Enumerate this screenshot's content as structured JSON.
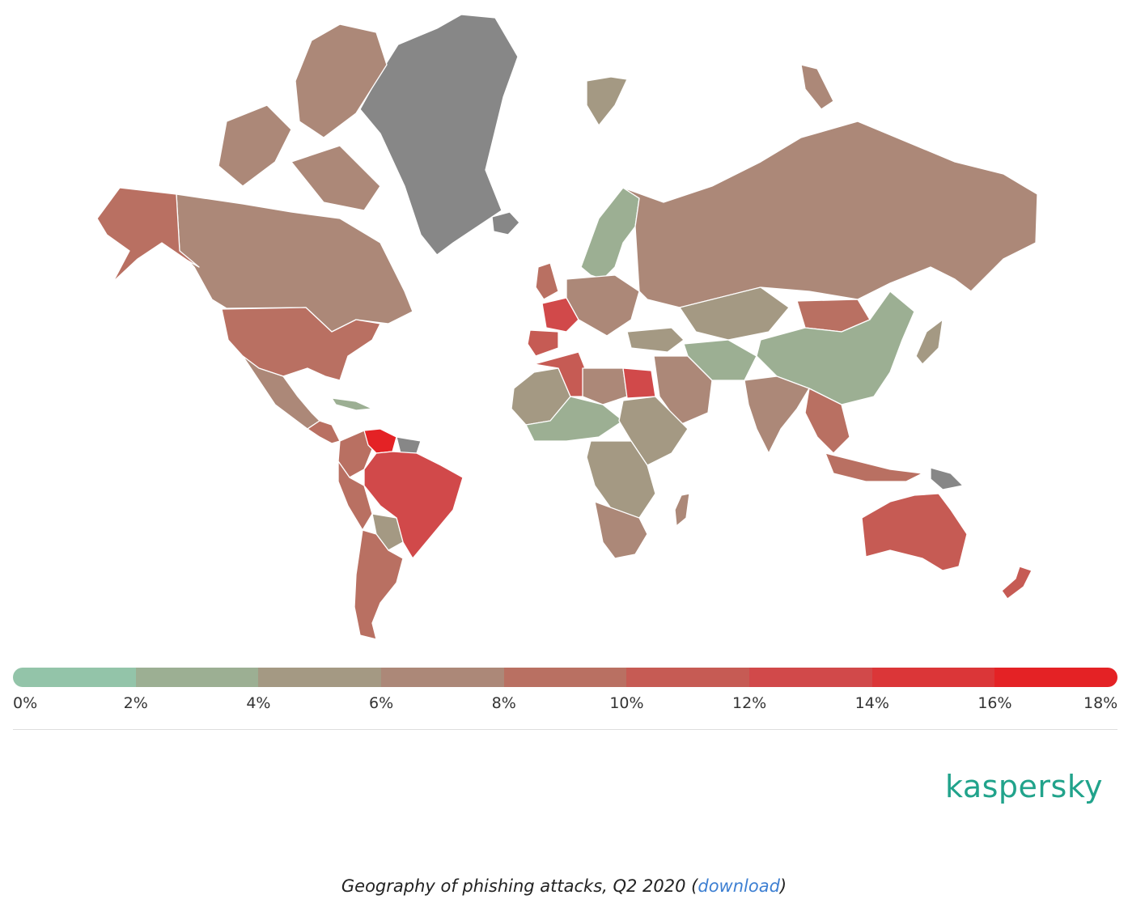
{
  "map": {
    "legend": {
      "ticks": [
        "0%",
        "2%",
        "4%",
        "6%",
        "8%",
        "10%",
        "12%",
        "14%",
        "16%",
        "18%"
      ],
      "colors": [
        "#93c4a9",
        "#9caf93",
        "#a49983",
        "#ac8878",
        "#b97062",
        "#c65b54",
        "#d1494a",
        "#db3638",
        "#e42225"
      ]
    },
    "no_data_color": "#878787",
    "regions": [
      {
        "name": "Greenland",
        "band": -1
      },
      {
        "name": "Canada",
        "band": 3
      },
      {
        "name": "Alaska",
        "band": 4
      },
      {
        "name": "United States",
        "band": 4
      },
      {
        "name": "Mexico",
        "band": 3
      },
      {
        "name": "Venezuela",
        "band": 8
      },
      {
        "name": "Brazil",
        "band": 6
      },
      {
        "name": "France",
        "band": 6
      },
      {
        "name": "Algeria",
        "band": 5
      },
      {
        "name": "Egypt",
        "band": 6
      },
      {
        "name": "China",
        "band": 1
      },
      {
        "name": "Russia",
        "band": 3
      },
      {
        "name": "Australia",
        "band": 5
      },
      {
        "name": "India",
        "band": 3
      },
      {
        "name": "Mongolia",
        "band": 4
      },
      {
        "name": "Nordics",
        "band": 1
      },
      {
        "name": "South Africa",
        "band": 4
      },
      {
        "name": "Papua New Guinea",
        "band": -1
      }
    ]
  },
  "branding": {
    "logo_text": "kaspersky",
    "logo_color": "#21a38b"
  },
  "caption": {
    "text": "Geography of phishing attacks, Q2 2020 (",
    "link": "download",
    "end": ")"
  }
}
